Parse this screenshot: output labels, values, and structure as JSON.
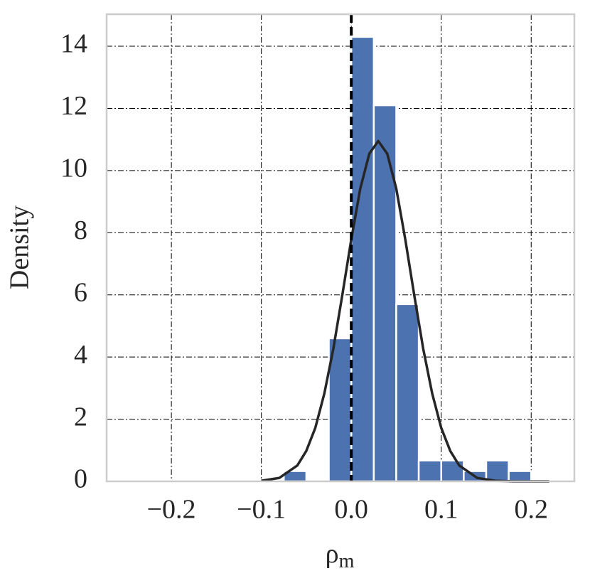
{
  "chart_data": {
    "type": "histogram",
    "xlabel": "ρ",
    "xlabel_sub": "m",
    "ylabel": "Density",
    "bins": [
      -0.075,
      -0.05,
      -0.025,
      0,
      0.025,
      0.05,
      0.075,
      0.1,
      0.125,
      0.15,
      0.175,
      0.2,
      0.225
    ],
    "counts": [
      0.33,
      0,
      4.6,
      14.3,
      12.1,
      5.7,
      0.67,
      0.67,
      0.33,
      0.67,
      0.33,
      0
    ],
    "color": "#4c72b0",
    "curve": {
      "color": "#262626",
      "x": [
        -0.1,
        -0.08,
        -0.06,
        -0.05,
        -0.04,
        -0.03,
        -0.02,
        -0.01,
        0,
        0.01,
        0.02,
        0.03,
        0.04,
        0.05,
        0.06,
        0.07,
        0.08,
        0.09,
        0.1,
        0.11,
        0.12,
        0.14,
        0.16,
        0.18,
        0.22
      ],
      "values": [
        0.02,
        0.11,
        0.51,
        0.98,
        1.72,
        2.82,
        4.26,
        5.99,
        7.79,
        9.42,
        10.54,
        10.95,
        10.54,
        9.42,
        7.79,
        5.99,
        4.26,
        2.82,
        1.72,
        0.98,
        0.51,
        0.11,
        0.02,
        0,
        0
      ]
    },
    "vline": {
      "x": 0,
      "color": "#000000"
    },
    "xlim": [
      -0.272,
      0.248
    ],
    "ylim": [
      0,
      15.03
    ],
    "xticks": [
      {
        "value": -0.2,
        "label": "−0.2"
      },
      {
        "value": -0.1,
        "label": "−0.1"
      },
      {
        "value": 0,
        "label": "0.0"
      },
      0.1,
      0.2
    ],
    "yticks": [
      0,
      2,
      4,
      6,
      8,
      10,
      12,
      14
    ],
    "grid": true
  }
}
